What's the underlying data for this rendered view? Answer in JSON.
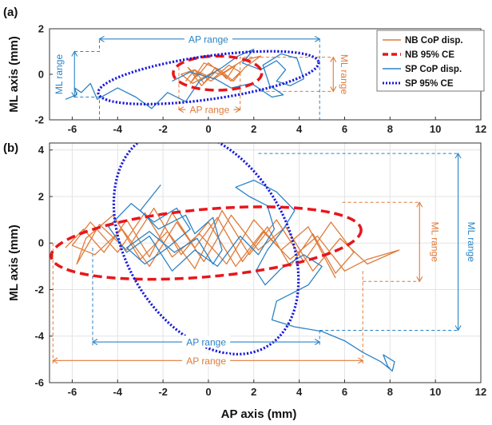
{
  "figure": {
    "panel_a_label": "(a)",
    "panel_b_label": "(b)"
  },
  "colors": {
    "nb": "#e07b39",
    "nb_ce": "#e8161b",
    "sp": "#2b83c6",
    "sp_ce": "#1a1adb"
  },
  "legend": {
    "nb_disp": "NB CoP disp.",
    "nb_ce": "NB 95% CE",
    "sp_disp": "SP CoP disp.",
    "sp_ce": "SP 95% CE"
  },
  "chart_data": [
    {
      "id": "panel_a",
      "type": "line",
      "xlabel": "",
      "ylabel": "ML axis (mm)",
      "xlim": [
        -7,
        12
      ],
      "ylim": [
        -2,
        2
      ],
      "xticks": [
        -6,
        -4,
        -2,
        0,
        2,
        4,
        6,
        8,
        10,
        12
      ],
      "yticks": [
        -2,
        0,
        2
      ],
      "legend_position": "top-right",
      "series": [
        {
          "name": "NB CoP disp.",
          "x": [
            -1.0,
            -0.6,
            -0.2,
            0.3,
            0.8,
            1.2,
            0.6,
            0.0,
            -0.5,
            -0.9,
            -0.3,
            0.4,
            1.0,
            1.4,
            0.9,
            0.2,
            -0.4,
            -0.8,
            -0.2,
            0.5,
            1.1,
            1.6,
            2.3,
            1.5,
            0.7,
            0.1,
            -0.6,
            -1.2,
            -0.7,
            0.2,
            0.9
          ],
          "y": [
            -0.3,
            0.2,
            -0.4,
            0.3,
            -0.2,
            0.4,
            0.0,
            0.5,
            -0.1,
            0.3,
            -0.5,
            0.2,
            -0.3,
            0.1,
            0.4,
            -0.2,
            0.1,
            -0.4,
            0.5,
            0.2,
            -0.3,
            0.3,
            0.8,
            0.6,
            0.1,
            -0.3,
            0.2,
            0.0,
            -0.4,
            0.1,
            -0.1
          ]
        },
        {
          "name": "SP CoP disp.",
          "x": [
            -6.3,
            -5.8,
            -5.9,
            -5.6,
            -5.2,
            -4.9,
            -4.0,
            -3.2,
            -2.5,
            -1.8,
            -1.0,
            -0.4,
            0.6,
            1.3,
            2.0,
            1.5,
            2.3,
            3.0,
            3.4,
            3.0,
            3.6,
            4.2,
            3.9,
            3.2,
            2.4,
            2.7,
            3.3,
            2.8,
            1.9,
            1.0,
            0.3,
            -0.8,
            -1.6
          ],
          "y": [
            -1.1,
            -0.9,
            -0.6,
            -0.8,
            -0.4,
            -1.1,
            -0.6,
            -1.0,
            -1.5,
            -0.8,
            -1.2,
            -0.3,
            0.3,
            0.8,
            1.1,
            0.5,
            0.2,
            0.6,
            0.2,
            -0.3,
            -0.5,
            -0.2,
            0.7,
            0.9,
            0.4,
            -0.5,
            -0.9,
            -1.0,
            -0.4,
            -0.6,
            -0.2,
            0.1,
            -0.3
          ]
        }
      ],
      "ellipses": [
        {
          "name": "NB 95% CE",
          "cx": 0.4,
          "cy": 0.05,
          "rx": 1.95,
          "ry": 0.75,
          "angle_deg": 0
        },
        {
          "name": "SP 95% CE",
          "cx": 0.0,
          "cy": -0.15,
          "rx": 4.9,
          "ry": 0.95,
          "angle_deg": 8
        }
      ],
      "annotations": [
        {
          "text": "AP range",
          "color": "#2b83c6",
          "x1": -4.8,
          "x2": 4.9,
          "y": 1.55,
          "orient": "h",
          "label_x": 0.0,
          "label_y": 1.55
        },
        {
          "text": "AP range",
          "color": "#e07b39",
          "x1": -1.3,
          "x2": 1.4,
          "y": -1.55,
          "orient": "h",
          "label_x": 0.05,
          "label_y": -1.55
        },
        {
          "text": "ML range",
          "color": "#2b83c6",
          "y1": -1.0,
          "y2": 1.0,
          "x": -5.9,
          "orient": "v",
          "label_x": -6.55,
          "label_y": 0.0
        },
        {
          "text": "ML range",
          "color": "#e07b39",
          "y1": -0.75,
          "y2": 0.75,
          "x": 5.5,
          "orient": "v",
          "label_x": 5.95,
          "label_y": 0.0
        }
      ],
      "guides": [
        {
          "color": "#2b83c6",
          "points": [
            [
              -5.9,
              1.0
            ],
            [
              -4.8,
              1.0
            ],
            [
              -4.8,
              1.55
            ]
          ]
        },
        {
          "color": "#2b83c6",
          "points": [
            [
              -5.9,
              -1.0
            ],
            [
              -4.8,
              -1.0
            ],
            [
              -4.8,
              -2.0
            ]
          ]
        },
        {
          "color": "#2b83c6",
          "points": [
            [
              4.9,
              1.55
            ],
            [
              4.9,
              -2.0
            ]
          ]
        },
        {
          "color": "#e07b39",
          "points": [
            [
              -1.3,
              -1.55
            ],
            [
              -1.3,
              0.5
            ]
          ]
        },
        {
          "color": "#e07b39",
          "points": [
            [
              1.4,
              -1.55
            ],
            [
              1.4,
              0.75
            ],
            [
              5.5,
              0.75
            ]
          ]
        },
        {
          "color": "#e07b39",
          "points": [
            [
              2.3,
              -0.75
            ],
            [
              5.5,
              -0.75
            ]
          ]
        }
      ]
    },
    {
      "id": "panel_b",
      "type": "line",
      "xlabel": "AP axis (mm)",
      "ylabel": "ML axis (mm)",
      "xlim": [
        -7,
        12
      ],
      "ylim": [
        -6,
        4.3
      ],
      "xticks": [
        -6,
        -4,
        -2,
        0,
        2,
        4,
        6,
        8,
        10,
        12
      ],
      "yticks": [
        -6,
        -4,
        -2,
        0,
        2,
        4
      ],
      "grid": true,
      "series": [
        {
          "name": "NB CoP disp.",
          "x": [
            -6.3,
            -5.5,
            -4.6,
            -3.6,
            -2.6,
            -1.6,
            -0.6,
            0.4,
            1.5,
            2.6,
            3.6,
            4.6,
            5.6,
            6.4,
            5.4,
            4.2,
            3.0,
            1.8,
            0.6,
            -0.6,
            -1.8,
            -3.0,
            -4.2,
            -5.4,
            -5.8,
            -4.8,
            -3.6,
            -2.4,
            -1.2,
            0.0,
            1.2,
            2.4,
            3.6,
            4.8,
            6.0,
            7.0,
            8.4,
            7.0,
            5.8,
            4.6,
            3.4,
            2.2,
            1.0,
            -0.2,
            -1.4,
            -2.6,
            -3.8,
            -5.0,
            -6.0,
            -5.2,
            -4.0,
            -2.8,
            -1.6,
            -0.4,
            0.8,
            2.0,
            3.2,
            4.4,
            5.6
          ],
          "y": [
            -0.2,
            0.6,
            -0.4,
            1.0,
            -0.6,
            1.3,
            -0.2,
            1.1,
            -0.8,
            0.7,
            -1.0,
            0.4,
            -1.3,
            -0.4,
            0.9,
            -0.8,
            1.0,
            -0.5,
            1.4,
            -1.1,
            0.5,
            -0.7,
            1.2,
            0.2,
            -0.9,
            0.8,
            -0.3,
            1.5,
            -0.5,
            0.9,
            -1.0,
            0.5,
            -0.7,
            0.3,
            -1.2,
            -0.7,
            -0.3,
            -0.9,
            0.2,
            -1.2,
            0.7,
            -0.3,
            1.2,
            -0.8,
            0.9,
            -1.0,
            0.6,
            -0.5,
            -0.1,
            0.9,
            -0.4,
            1.3,
            -0.6,
            0.4,
            -0.9,
            1.0,
            -0.3,
            0.7,
            -1.5
          ]
        },
        {
          "name": "SP CoP disp.",
          "x": [
            -2.1,
            -3.0,
            -2.2,
            -1.0,
            -0.6,
            0.2,
            0.6,
            0.2,
            -0.5,
            -1.5,
            -2.6,
            -3.6,
            -2.8,
            -1.8,
            -0.8,
            -1.4,
            -2.4,
            -3.4,
            -4.4,
            -3.6,
            -2.6,
            -1.6,
            -0.6,
            0.4,
            1.4,
            2.2,
            2.9,
            2.6,
            1.8,
            1.2,
            2.0,
            3.0,
            3.8,
            3.3,
            2.6,
            2.1,
            2.5,
            3.2,
            4.2,
            5.0,
            4.4,
            3.6,
            3.0,
            2.8,
            3.8,
            5.0,
            6.0,
            6.8,
            7.6,
            8.1,
            8.2,
            7.7,
            7.9,
            8.0
          ],
          "y": [
            2.5,
            1.4,
            0.6,
            1.2,
            0.4,
            1.1,
            -0.3,
            -0.9,
            0.2,
            -0.4,
            0.5,
            -0.2,
            -0.9,
            -0.2,
            0.6,
            1.5,
            0.9,
            1.7,
            0.7,
            -0.4,
            0.3,
            -1.2,
            -0.3,
            -1.0,
            0.3,
            -0.5,
            0.6,
            1.6,
            2.0,
            2.4,
            2.7,
            2.2,
            1.4,
            0.6,
            -0.3,
            -1.2,
            -1.8,
            -1.1,
            -0.5,
            -1.0,
            -1.8,
            -2.2,
            -2.5,
            -3.3,
            -3.6,
            -3.8,
            -4.2,
            -4.7,
            -5.1,
            -5.5,
            -5.1,
            -4.8,
            -5.3,
            -5.4
          ]
        }
      ],
      "ellipses": [
        {
          "name": "NB 95% CE",
          "cx": -0.1,
          "cy": 0.0,
          "rx": 6.85,
          "ry": 1.45,
          "angle_deg": 5
        },
        {
          "name": "SP 95% CE",
          "cx": -0.1,
          "cy": 0.05,
          "rx": 3.55,
          "ry": 5.2,
          "angle_deg": 30
        }
      ],
      "annotations": [
        {
          "text": "ML range",
          "color": "#e07b39",
          "y1": -1.65,
          "y2": 1.75,
          "x": 9.3,
          "orient": "v",
          "label_x": 9.95,
          "label_y": 0.05
        },
        {
          "text": "ML range",
          "color": "#2b83c6",
          "y1": -3.75,
          "y2": 3.85,
          "x": 11.0,
          "orient": "v",
          "label_x": 11.55,
          "label_y": 0.05
        },
        {
          "text": "AP range",
          "color": "#2b83c6",
          "x1": -5.1,
          "x2": 4.9,
          "y": -4.25,
          "orient": "h",
          "label_x": -0.1,
          "label_y": -4.25
        },
        {
          "text": "AP range",
          "color": "#e07b39",
          "x1": -6.85,
          "x2": 6.8,
          "y": -5.05,
          "orient": "h",
          "label_x": -0.1,
          "label_y": -5.05
        }
      ],
      "guides": [
        {
          "color": "#2b83c6",
          "points": [
            [
              -5.1,
              -0.2
            ],
            [
              -5.1,
              -4.4
            ]
          ]
        },
        {
          "color": "#2b83c6",
          "points": [
            [
              4.9,
              -3.75
            ],
            [
              4.9,
              -4.4
            ]
          ]
        },
        {
          "color": "#2b83c6",
          "points": [
            [
              4.9,
              -3.75
            ],
            [
              11.0,
              -3.75
            ]
          ]
        },
        {
          "color": "#2b83c6",
          "points": [
            [
              2.2,
              3.85
            ],
            [
              11.0,
              3.85
            ]
          ]
        },
        {
          "color": "#e07b39",
          "points": [
            [
              -6.85,
              0.0
            ],
            [
              -6.85,
              -5.2
            ]
          ]
        },
        {
          "color": "#e07b39",
          "points": [
            [
              6.8,
              -1.2
            ],
            [
              6.8,
              -5.2
            ]
          ]
        },
        {
          "color": "#e07b39",
          "points": [
            [
              5.9,
              1.75
            ],
            [
              9.3,
              1.75
            ]
          ]
        },
        {
          "color": "#e07b39",
          "points": [
            [
              6.8,
              -1.65
            ],
            [
              9.3,
              -1.65
            ]
          ]
        }
      ]
    }
  ]
}
